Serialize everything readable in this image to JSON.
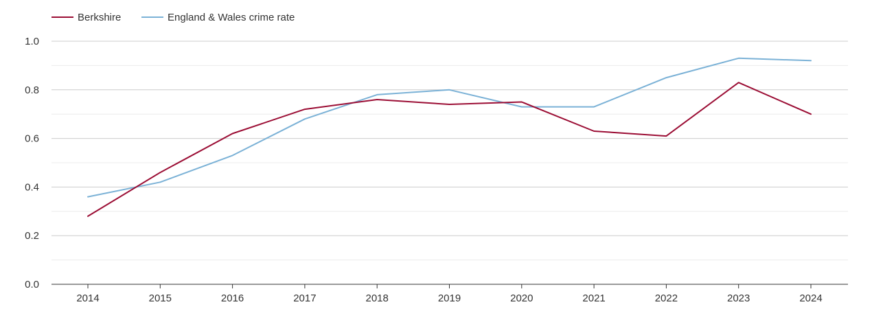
{
  "chart_data": {
    "type": "line",
    "title": "",
    "xlabel": "",
    "ylabel": "",
    "categories": [
      "2014",
      "2015",
      "2016",
      "2017",
      "2018",
      "2019",
      "2020",
      "2021",
      "2022",
      "2023",
      "2024"
    ],
    "ylim": [
      0,
      1.0
    ],
    "yticks": [
      "0.0",
      "0.2",
      "0.4",
      "0.6",
      "0.8",
      "1.0"
    ],
    "grid": true,
    "legend_position": "top-left",
    "series": [
      {
        "name": "Berkshire",
        "color": "#9b0d34",
        "values": [
          0.28,
          0.46,
          0.62,
          0.72,
          0.76,
          0.74,
          0.75,
          0.63,
          0.61,
          0.83,
          0.7
        ]
      },
      {
        "name": "England & Wales crime rate",
        "color": "#7ab1d6",
        "values": [
          0.36,
          0.42,
          0.53,
          0.68,
          0.78,
          0.8,
          0.73,
          0.73,
          0.85,
          0.93,
          0.92
        ]
      }
    ]
  }
}
